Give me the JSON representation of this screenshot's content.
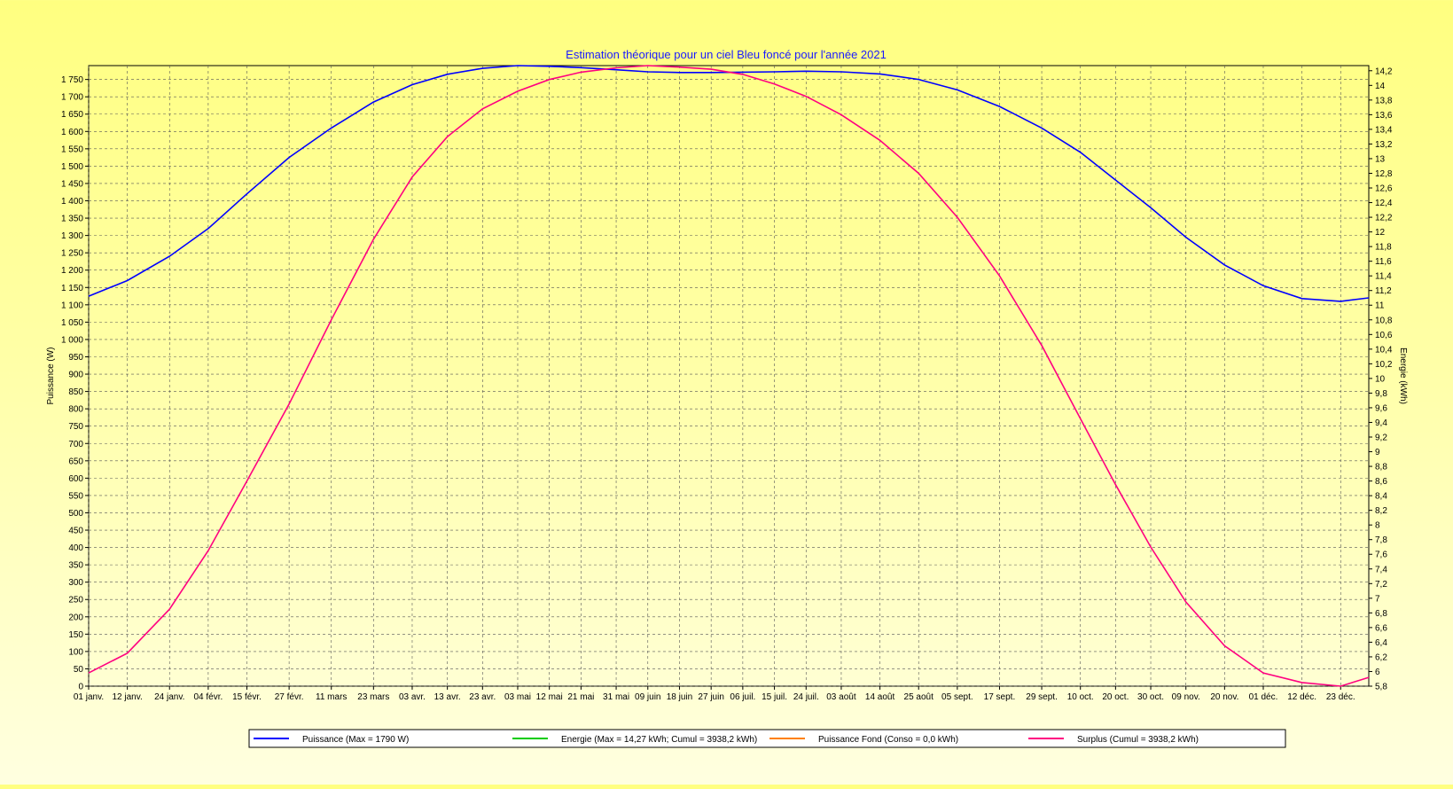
{
  "chart_data": {
    "type": "line",
    "title": "Estimation théorique pour un ciel Bleu foncé pour l'année 2021",
    "ylabel_left": "Puissance (W)",
    "ylabel_right": "Energie (kWh)",
    "ylim_left": [
      0,
      1790
    ],
    "ylim_right": [
      5.8,
      14.27
    ],
    "xlim": [
      0,
      364
    ],
    "grid": true,
    "legend_position": "bottom",
    "x_ticks": [
      {
        "day": 0,
        "label": "01 janv."
      },
      {
        "day": 11,
        "label": "12 janv."
      },
      {
        "day": 23,
        "label": "24 janv."
      },
      {
        "day": 34,
        "label": "04 févr."
      },
      {
        "day": 45,
        "label": "15 févr."
      },
      {
        "day": 57,
        "label": "27 févr."
      },
      {
        "day": 69,
        "label": "11 mars"
      },
      {
        "day": 81,
        "label": "23 mars"
      },
      {
        "day": 92,
        "label": "03 avr."
      },
      {
        "day": 102,
        "label": "13 avr."
      },
      {
        "day": 112,
        "label": "23 avr."
      },
      {
        "day": 122,
        "label": "03 mai"
      },
      {
        "day": 131,
        "label": "12 mai"
      },
      {
        "day": 140,
        "label": "21 mai"
      },
      {
        "day": 150,
        "label": "31 mai"
      },
      {
        "day": 159,
        "label": "09 juin"
      },
      {
        "day": 168,
        "label": "18 juin"
      },
      {
        "day": 177,
        "label": "27 juin"
      },
      {
        "day": 186,
        "label": "06 juil."
      },
      {
        "day": 195,
        "label": "15 juil."
      },
      {
        "day": 204,
        "label": "24 juil."
      },
      {
        "day": 214,
        "label": "03 août"
      },
      {
        "day": 225,
        "label": "14 août"
      },
      {
        "day": 236,
        "label": "25 août"
      },
      {
        "day": 247,
        "label": "05 sept."
      },
      {
        "day": 259,
        "label": "17 sept."
      },
      {
        "day": 271,
        "label": "29 sept."
      },
      {
        "day": 282,
        "label": "10 oct."
      },
      {
        "day": 292,
        "label": "20 oct."
      },
      {
        "day": 302,
        "label": "30 oct."
      },
      {
        "day": 312,
        "label": "09 nov."
      },
      {
        "day": 323,
        "label": "20 nov."
      },
      {
        "day": 334,
        "label": "01 déc."
      },
      {
        "day": 345,
        "label": "12 déc."
      },
      {
        "day": 356,
        "label": "23 déc."
      }
    ],
    "y_ticks_left": [
      {
        "v": 0,
        "label": "0"
      },
      {
        "v": 50,
        "label": "50"
      },
      {
        "v": 100,
        "label": "100"
      },
      {
        "v": 150,
        "label": "150"
      },
      {
        "v": 200,
        "label": "200"
      },
      {
        "v": 250,
        "label": "250"
      },
      {
        "v": 300,
        "label": "300"
      },
      {
        "v": 350,
        "label": "350"
      },
      {
        "v": 400,
        "label": "400"
      },
      {
        "v": 450,
        "label": "450"
      },
      {
        "v": 500,
        "label": "500"
      },
      {
        "v": 550,
        "label": "550"
      },
      {
        "v": 600,
        "label": "600"
      },
      {
        "v": 650,
        "label": "650"
      },
      {
        "v": 700,
        "label": "700"
      },
      {
        "v": 750,
        "label": "750"
      },
      {
        "v": 800,
        "label": "800"
      },
      {
        "v": 850,
        "label": "850"
      },
      {
        "v": 900,
        "label": "900"
      },
      {
        "v": 950,
        "label": "950"
      },
      {
        "v": 1000,
        "label": "1 000"
      },
      {
        "v": 1050,
        "label": "1 050"
      },
      {
        "v": 1100,
        "label": "1 100"
      },
      {
        "v": 1150,
        "label": "1 150"
      },
      {
        "v": 1200,
        "label": "1 200"
      },
      {
        "v": 1250,
        "label": "1 250"
      },
      {
        "v": 1300,
        "label": "1 300"
      },
      {
        "v": 1350,
        "label": "1 350"
      },
      {
        "v": 1400,
        "label": "1 400"
      },
      {
        "v": 1450,
        "label": "1 450"
      },
      {
        "v": 1500,
        "label": "1 500"
      },
      {
        "v": 1550,
        "label": "1 550"
      },
      {
        "v": 1600,
        "label": "1 600"
      },
      {
        "v": 1650,
        "label": "1 650"
      },
      {
        "v": 1700,
        "label": "1 700"
      },
      {
        "v": 1750,
        "label": "1 750"
      }
    ],
    "y_ticks_right": [
      {
        "v": 5.8,
        "label": "5,8"
      },
      {
        "v": 6,
        "label": "6"
      },
      {
        "v": 6.2,
        "label": "6,2"
      },
      {
        "v": 6.4,
        "label": "6,4"
      },
      {
        "v": 6.6,
        "label": "6,6"
      },
      {
        "v": 6.8,
        "label": "6,8"
      },
      {
        "v": 7,
        "label": "7"
      },
      {
        "v": 7.2,
        "label": "7,2"
      },
      {
        "v": 7.4,
        "label": "7,4"
      },
      {
        "v": 7.6,
        "label": "7,6"
      },
      {
        "v": 7.8,
        "label": "7,8"
      },
      {
        "v": 8,
        "label": "8"
      },
      {
        "v": 8.2,
        "label": "8,2"
      },
      {
        "v": 8.4,
        "label": "8,4"
      },
      {
        "v": 8.6,
        "label": "8,6"
      },
      {
        "v": 8.8,
        "label": "8,8"
      },
      {
        "v": 9,
        "label": "9"
      },
      {
        "v": 9.2,
        "label": "9,2"
      },
      {
        "v": 9.4,
        "label": "9,4"
      },
      {
        "v": 9.6,
        "label": "9,6"
      },
      {
        "v": 9.8,
        "label": "9,8"
      },
      {
        "v": 10,
        "label": "10"
      },
      {
        "v": 10.2,
        "label": "10,2"
      },
      {
        "v": 10.4,
        "label": "10,4"
      },
      {
        "v": 10.6,
        "label": "10,6"
      },
      {
        "v": 10.8,
        "label": "10,8"
      },
      {
        "v": 11,
        "label": "11"
      },
      {
        "v": 11.2,
        "label": "11,2"
      },
      {
        "v": 11.4,
        "label": "11,4"
      },
      {
        "v": 11.6,
        "label": "11,6"
      },
      {
        "v": 11.8,
        "label": "11,8"
      },
      {
        "v": 12,
        "label": "12"
      },
      {
        "v": 12.2,
        "label": "12,2"
      },
      {
        "v": 12.4,
        "label": "12,4"
      },
      {
        "v": 12.6,
        "label": "12,6"
      },
      {
        "v": 12.8,
        "label": "12,8"
      },
      {
        "v": 13,
        "label": "13"
      },
      {
        "v": 13.2,
        "label": "13,2"
      },
      {
        "v": 13.4,
        "label": "13,4"
      },
      {
        "v": 13.6,
        "label": "13,6"
      },
      {
        "v": 13.8,
        "label": "13,8"
      },
      {
        "v": 14,
        "label": "14"
      },
      {
        "v": 14.2,
        "label": "14,2"
      }
    ],
    "series": [
      {
        "name": "Puissance (Max = 1790 W)",
        "axis": "left",
        "color": "#0000ff",
        "points": [
          [
            0,
            1125
          ],
          [
            11,
            1170
          ],
          [
            23,
            1240
          ],
          [
            34,
            1320
          ],
          [
            45,
            1420
          ],
          [
            57,
            1525
          ],
          [
            69,
            1610
          ],
          [
            81,
            1685
          ],
          [
            92,
            1735
          ],
          [
            102,
            1765
          ],
          [
            112,
            1782
          ],
          [
            122,
            1790
          ],
          [
            131,
            1788
          ],
          [
            140,
            1784
          ],
          [
            150,
            1778
          ],
          [
            159,
            1772
          ],
          [
            168,
            1770
          ],
          [
            177,
            1770
          ],
          [
            186,
            1771
          ],
          [
            195,
            1772
          ],
          [
            204,
            1774
          ],
          [
            214,
            1772
          ],
          [
            225,
            1766
          ],
          [
            236,
            1750
          ],
          [
            247,
            1720
          ],
          [
            259,
            1672
          ],
          [
            271,
            1610
          ],
          [
            282,
            1540
          ],
          [
            292,
            1460
          ],
          [
            302,
            1380
          ],
          [
            312,
            1295
          ],
          [
            323,
            1215
          ],
          [
            334,
            1155
          ],
          [
            345,
            1118
          ],
          [
            356,
            1110
          ],
          [
            364,
            1120
          ]
        ]
      },
      {
        "name": "Energie (Max = 14,27 kWh; Cumul = 3938,2 kWh)",
        "axis": "right",
        "color": "#00cc00",
        "points": []
      },
      {
        "name": "Puissance Fond (Conso = 0,0 kWh)",
        "axis": "left",
        "color": "#ff8000",
        "points": []
      },
      {
        "name": "Surplus (Cumul = 3938,2 kWh)",
        "axis": "right",
        "color": "#ff0080",
        "points": [
          [
            0,
            5.98
          ],
          [
            11,
            6.25
          ],
          [
            23,
            6.85
          ],
          [
            34,
            7.65
          ],
          [
            45,
            8.6
          ],
          [
            57,
            9.65
          ],
          [
            69,
            10.8
          ],
          [
            81,
            11.9
          ],
          [
            92,
            12.75
          ],
          [
            102,
            13.3
          ],
          [
            112,
            13.68
          ],
          [
            122,
            13.92
          ],
          [
            131,
            14.08
          ],
          [
            140,
            14.18
          ],
          [
            150,
            14.24
          ],
          [
            159,
            14.27
          ],
          [
            168,
            14.25
          ],
          [
            177,
            14.22
          ],
          [
            186,
            14.15
          ],
          [
            195,
            14.02
          ],
          [
            204,
            13.85
          ],
          [
            214,
            13.6
          ],
          [
            225,
            13.25
          ],
          [
            236,
            12.8
          ],
          [
            247,
            12.2
          ],
          [
            259,
            11.4
          ],
          [
            271,
            10.45
          ],
          [
            282,
            9.45
          ],
          [
            292,
            8.55
          ],
          [
            302,
            7.7
          ],
          [
            312,
            6.95
          ],
          [
            323,
            6.35
          ],
          [
            334,
            5.98
          ],
          [
            345,
            5.85
          ],
          [
            356,
            5.8
          ],
          [
            364,
            5.92
          ]
        ]
      }
    ]
  }
}
